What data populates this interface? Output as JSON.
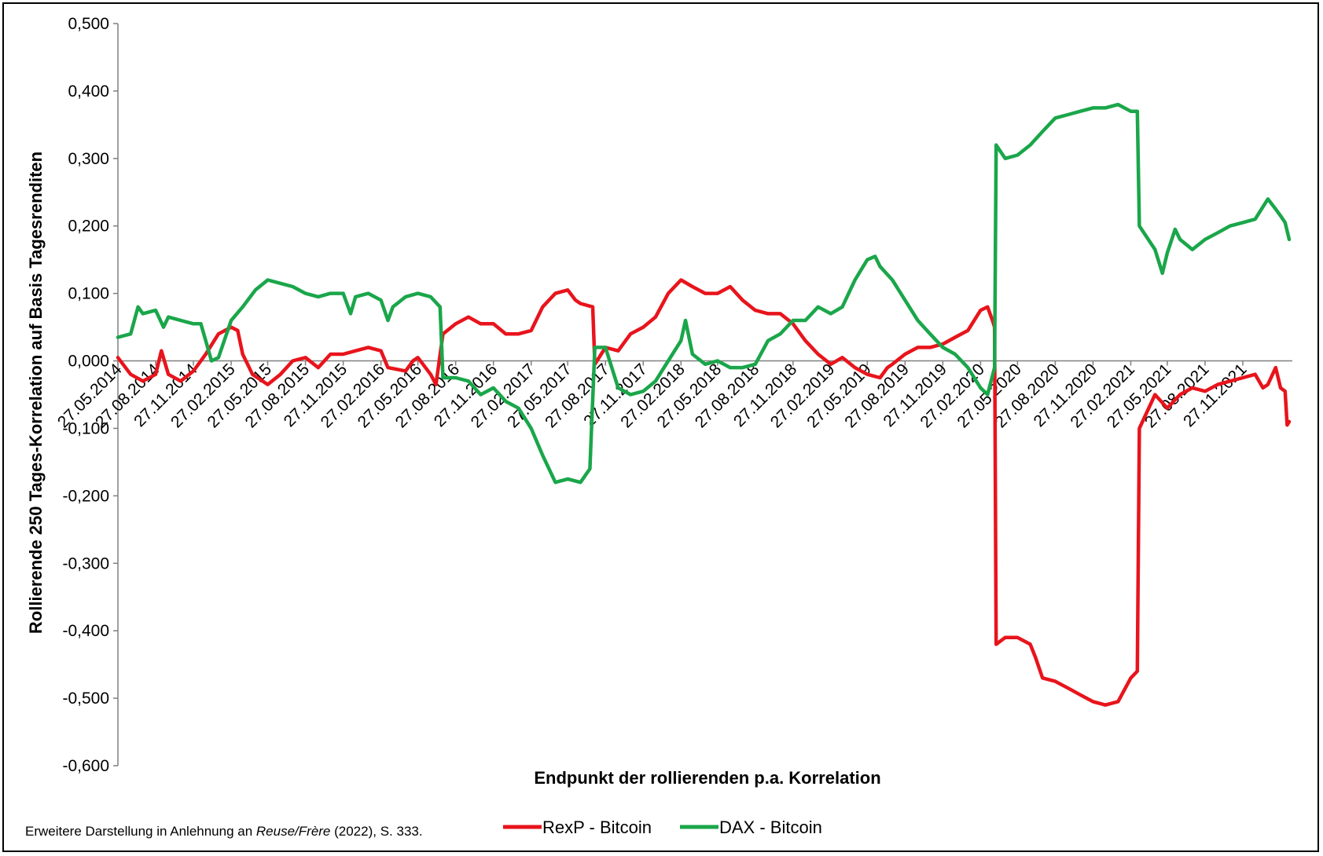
{
  "chart_data": {
    "type": "line",
    "title": "",
    "xlabel": "Endpunkt der rollierenden p.a. Korrelation",
    "ylabel": "Rollierende 250 Tages-Korrelation auf Basis Tagesrenditen",
    "ylim": [
      -0.6,
      0.5
    ],
    "yticks": [
      "0,500",
      "0,400",
      "0,300",
      "0,200",
      "0,100",
      "0,000",
      "-0,100",
      "-0,200",
      "-0,300",
      "-0,400",
      "-0,500",
      "-0,600"
    ],
    "xticks": [
      "27.05.2014",
      "27.08.2014",
      "27.11.2014",
      "27.02.2015",
      "27.05.2015",
      "27.08.2015",
      "27.11.2015",
      "27.02.2016",
      "27.05.2016",
      "27.08.2016",
      "27.11.2016",
      "27.02.2017",
      "27.05.2017",
      "27.08.2017",
      "27.11.2017",
      "27.02.2018",
      "27.05.2018",
      "27.08.2018",
      "27.11.2018",
      "27.02.2019",
      "27.05.2019",
      "27.08.2019",
      "27.11.2019",
      "27.02.2020",
      "27.05.2020",
      "27.08.2020",
      "27.11.2020",
      "27.02.2021",
      "27.05.2021",
      "27.08.2021",
      "27.11.2021"
    ],
    "grid": false,
    "legend_position": "bottom",
    "series": [
      {
        "name": "RexP - Bitcoin",
        "color": "#e8141c",
        "points": [
          [
            "27.05.2014",
            0.005
          ],
          [
            "27.06.2014",
            -0.02
          ],
          [
            "27.07.2014",
            -0.03
          ],
          [
            "27.08.2014",
            -0.02
          ],
          [
            "10.09.2014",
            0.015
          ],
          [
            "27.09.2014",
            -0.02
          ],
          [
            "27.10.2014",
            -0.03
          ],
          [
            "27.11.2014",
            -0.015
          ],
          [
            "27.12.2014",
            0.01
          ],
          [
            "27.01.2015",
            0.04
          ],
          [
            "27.02.2015",
            0.05
          ],
          [
            "15.03.2015",
            0.045
          ],
          [
            "27.03.2015",
            0.01
          ],
          [
            "20.04.2015",
            -0.02
          ],
          [
            "27.05.2015",
            -0.035
          ],
          [
            "27.06.2015",
            -0.02
          ],
          [
            "27.07.2015",
            0.0
          ],
          [
            "27.08.2015",
            0.005
          ],
          [
            "27.09.2015",
            -0.01
          ],
          [
            "27.10.2015",
            0.01
          ],
          [
            "27.11.2015",
            0.01
          ],
          [
            "27.12.2015",
            0.015
          ],
          [
            "27.01.2016",
            0.02
          ],
          [
            "27.02.2016",
            0.015
          ],
          [
            "15.03.2016",
            -0.01
          ],
          [
            "27.04.2016",
            -0.015
          ],
          [
            "15.05.2016",
            0.0
          ],
          [
            "27.05.2016",
            0.005
          ],
          [
            "27.06.2016",
            -0.02
          ],
          [
            "10.07.2016",
            -0.035
          ],
          [
            "27.07.2016",
            0.04
          ],
          [
            "27.08.2016",
            0.055
          ],
          [
            "27.09.2016",
            0.065
          ],
          [
            "27.10.2016",
            0.055
          ],
          [
            "27.11.2016",
            0.055
          ],
          [
            "27.12.2016",
            0.04
          ],
          [
            "27.01.2017",
            0.04
          ],
          [
            "27.02.2017",
            0.045
          ],
          [
            "27.03.2017",
            0.08
          ],
          [
            "27.04.2017",
            0.1
          ],
          [
            "27.05.2017",
            0.105
          ],
          [
            "15.06.2017",
            0.09
          ],
          [
            "27.06.2017",
            0.085
          ],
          [
            "27.07.2017",
            0.08
          ],
          [
            "01.08.2017",
            -0.005
          ],
          [
            "27.08.2017",
            0.02
          ],
          [
            "27.09.2017",
            0.015
          ],
          [
            "27.10.2017",
            0.04
          ],
          [
            "27.11.2017",
            0.05
          ],
          [
            "27.12.2017",
            0.065
          ],
          [
            "27.01.2018",
            0.1
          ],
          [
            "27.02.2018",
            0.12
          ],
          [
            "27.03.2018",
            0.11
          ],
          [
            "27.04.2018",
            0.1
          ],
          [
            "27.05.2018",
            0.1
          ],
          [
            "27.06.2018",
            0.11
          ],
          [
            "27.07.2018",
            0.09
          ],
          [
            "27.08.2018",
            0.075
          ],
          [
            "27.09.2018",
            0.07
          ],
          [
            "27.10.2018",
            0.07
          ],
          [
            "27.11.2018",
            0.055
          ],
          [
            "27.12.2018",
            0.03
          ],
          [
            "27.01.2019",
            0.01
          ],
          [
            "27.02.2019",
            -0.005
          ],
          [
            "27.03.2019",
            0.005
          ],
          [
            "27.04.2019",
            -0.01
          ],
          [
            "27.05.2019",
            -0.02
          ],
          [
            "27.06.2019",
            -0.025
          ],
          [
            "15.07.2019",
            -0.01
          ],
          [
            "27.07.2019",
            -0.005
          ],
          [
            "27.08.2019",
            0.01
          ],
          [
            "27.09.2019",
            0.02
          ],
          [
            "27.10.2019",
            0.02
          ],
          [
            "27.11.2019",
            0.025
          ],
          [
            "27.12.2019",
            0.035
          ],
          [
            "27.01.2020",
            0.045
          ],
          [
            "27.02.2020",
            0.075
          ],
          [
            "15.03.2020",
            0.08
          ],
          [
            "27.03.2020",
            0.06
          ],
          [
            "01.04.2020",
            0.05
          ],
          [
            "05.04.2020",
            -0.42
          ],
          [
            "27.04.2020",
            -0.41
          ],
          [
            "27.05.2020",
            -0.41
          ],
          [
            "27.06.2020",
            -0.42
          ],
          [
            "10.07.2020",
            -0.44
          ],
          [
            "27.07.2020",
            -0.47
          ],
          [
            "27.08.2020",
            -0.475
          ],
          [
            "27.09.2020",
            -0.485
          ],
          [
            "27.10.2020",
            -0.495
          ],
          [
            "27.11.2020",
            -0.505
          ],
          [
            "27.12.2020",
            -0.51
          ],
          [
            "27.01.2021",
            -0.505
          ],
          [
            "27.02.2021",
            -0.47
          ],
          [
            "15.03.2021",
            -0.46
          ],
          [
            "20.03.2021",
            -0.1
          ],
          [
            "27.04.2021",
            -0.05
          ],
          [
            "27.05.2021",
            -0.07
          ],
          [
            "27.06.2021",
            -0.05
          ],
          [
            "27.07.2021",
            -0.04
          ],
          [
            "27.08.2021",
            -0.045
          ],
          [
            "27.09.2021",
            -0.035
          ],
          [
            "27.10.2021",
            -0.03
          ],
          [
            "27.11.2021",
            -0.025
          ],
          [
            "27.12.2021",
            -0.02
          ],
          [
            "15.01.2022",
            -0.04
          ],
          [
            "27.01.2022",
            -0.035
          ],
          [
            "15.02.2022",
            -0.01
          ],
          [
            "27.02.2022",
            -0.04
          ],
          [
            "10.03.2022",
            -0.045
          ],
          [
            "15.03.2022",
            -0.095
          ],
          [
            "20.03.2022",
            -0.09
          ]
        ]
      },
      {
        "name": "DAX - Bitcoin",
        "color": "#1aa64a",
        "points": [
          [
            "27.05.2014",
            0.035
          ],
          [
            "27.06.2014",
            0.04
          ],
          [
            "15.07.2014",
            0.08
          ],
          [
            "27.07.2014",
            0.07
          ],
          [
            "27.08.2014",
            0.075
          ],
          [
            "15.09.2014",
            0.05
          ],
          [
            "27.09.2014",
            0.065
          ],
          [
            "27.10.2014",
            0.06
          ],
          [
            "27.11.2014",
            0.055
          ],
          [
            "15.12.2014",
            0.055
          ],
          [
            "27.12.2014",
            0.03
          ],
          [
            "10.01.2015",
            0.0
          ],
          [
            "27.01.2015",
            0.005
          ],
          [
            "27.02.2015",
            0.06
          ],
          [
            "27.03.2015",
            0.08
          ],
          [
            "27.04.2015",
            0.105
          ],
          [
            "27.05.2015",
            0.12
          ],
          [
            "27.06.2015",
            0.115
          ],
          [
            "27.07.2015",
            0.11
          ],
          [
            "27.08.2015",
            0.1
          ],
          [
            "27.09.2015",
            0.095
          ],
          [
            "27.10.2015",
            0.1
          ],
          [
            "27.11.2015",
            0.1
          ],
          [
            "15.12.2015",
            0.07
          ],
          [
            "27.12.2015",
            0.095
          ],
          [
            "27.01.2016",
            0.1
          ],
          [
            "27.02.2016",
            0.09
          ],
          [
            "15.03.2016",
            0.06
          ],
          [
            "27.03.2016",
            0.08
          ],
          [
            "27.04.2016",
            0.095
          ],
          [
            "27.05.2016",
            0.1
          ],
          [
            "27.06.2016",
            0.095
          ],
          [
            "20.07.2016",
            0.08
          ],
          [
            "27.07.2016",
            -0.025
          ],
          [
            "27.08.2016",
            -0.025
          ],
          [
            "27.09.2016",
            -0.03
          ],
          [
            "27.10.2016",
            -0.05
          ],
          [
            "27.11.2016",
            -0.04
          ],
          [
            "27.12.2016",
            -0.06
          ],
          [
            "27.01.2017",
            -0.07
          ],
          [
            "27.02.2017",
            -0.1
          ],
          [
            "27.03.2017",
            -0.14
          ],
          [
            "27.04.2017",
            -0.18
          ],
          [
            "27.05.2017",
            -0.175
          ],
          [
            "27.06.2017",
            -0.18
          ],
          [
            "20.07.2017",
            -0.16
          ],
          [
            "01.08.2017",
            0.02
          ],
          [
            "27.08.2017",
            0.02
          ],
          [
            "27.09.2017",
            -0.04
          ],
          [
            "27.10.2017",
            -0.05
          ],
          [
            "27.11.2017",
            -0.045
          ],
          [
            "27.12.2017",
            -0.03
          ],
          [
            "27.01.2018",
            0.0
          ],
          [
            "27.02.2018",
            0.03
          ],
          [
            "10.03.2018",
            0.06
          ],
          [
            "27.03.2018",
            0.01
          ],
          [
            "27.04.2018",
            -0.005
          ],
          [
            "27.05.2018",
            0.0
          ],
          [
            "27.06.2018",
            -0.01
          ],
          [
            "27.07.2018",
            -0.01
          ],
          [
            "27.08.2018",
            -0.005
          ],
          [
            "27.09.2018",
            0.03
          ],
          [
            "27.10.2018",
            0.04
          ],
          [
            "27.11.2018",
            0.06
          ],
          [
            "27.12.2018",
            0.06
          ],
          [
            "27.01.2019",
            0.08
          ],
          [
            "27.02.2019",
            0.07
          ],
          [
            "27.03.2019",
            0.08
          ],
          [
            "27.04.2019",
            0.12
          ],
          [
            "27.05.2019",
            0.15
          ],
          [
            "15.06.2019",
            0.155
          ],
          [
            "27.06.2019",
            0.14
          ],
          [
            "27.07.2019",
            0.12
          ],
          [
            "27.08.2019",
            0.09
          ],
          [
            "27.09.2019",
            0.06
          ],
          [
            "27.10.2019",
            0.04
          ],
          [
            "27.11.2019",
            0.02
          ],
          [
            "27.12.2019",
            0.01
          ],
          [
            "27.01.2020",
            -0.01
          ],
          [
            "27.02.2020",
            -0.04
          ],
          [
            "15.03.2020",
            -0.05
          ],
          [
            "01.04.2020",
            -0.01
          ],
          [
            "05.04.2020",
            0.32
          ],
          [
            "27.04.2020",
            0.3
          ],
          [
            "27.05.2020",
            0.305
          ],
          [
            "27.06.2020",
            0.32
          ],
          [
            "27.07.2020",
            0.34
          ],
          [
            "27.08.2020",
            0.36
          ],
          [
            "27.09.2020",
            0.365
          ],
          [
            "27.10.2020",
            0.37
          ],
          [
            "27.11.2020",
            0.375
          ],
          [
            "27.12.2020",
            0.375
          ],
          [
            "27.01.2021",
            0.38
          ],
          [
            "27.02.2021",
            0.37
          ],
          [
            "15.03.2021",
            0.37
          ],
          [
            "20.03.2021",
            0.2
          ],
          [
            "27.04.2021",
            0.165
          ],
          [
            "15.05.2021",
            0.13
          ],
          [
            "27.05.2021",
            0.16
          ],
          [
            "15.06.2021",
            0.195
          ],
          [
            "27.06.2021",
            0.18
          ],
          [
            "27.07.2021",
            0.165
          ],
          [
            "27.08.2021",
            0.18
          ],
          [
            "27.09.2021",
            0.19
          ],
          [
            "27.10.2021",
            0.2
          ],
          [
            "27.11.2021",
            0.205
          ],
          [
            "27.12.2021",
            0.21
          ],
          [
            "27.01.2022",
            0.24
          ],
          [
            "15.02.2022",
            0.225
          ],
          [
            "27.02.2022",
            0.215
          ],
          [
            "10.03.2022",
            0.205
          ],
          [
            "20.03.2022",
            0.18
          ]
        ]
      }
    ]
  },
  "source_note": {
    "prefix": "Erweitere Darstellung in Anlehnung an ",
    "italic": "Reuse/Frère",
    "suffix": " (2022), S. 333."
  }
}
